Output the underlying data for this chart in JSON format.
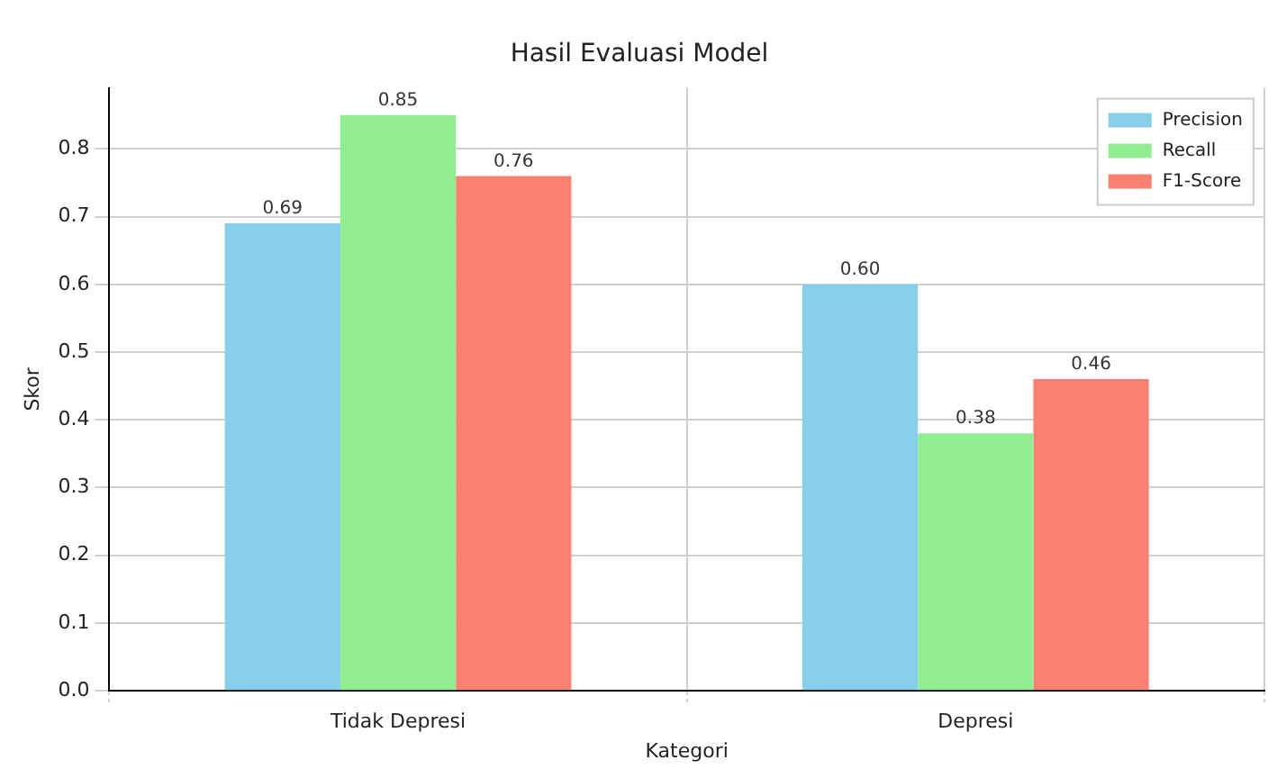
{
  "chart_data": {
    "type": "bar",
    "title": "Hasil Evaluasi Model",
    "xlabel": "Kategori",
    "ylabel": "Skor",
    "categories": [
      "Tidak Depresi",
      "Depresi"
    ],
    "series": [
      {
        "name": "Precision",
        "color": "#87ceeb",
        "values": [
          0.69,
          0.6
        ],
        "value_labels": [
          "0.69",
          "0.60"
        ]
      },
      {
        "name": "Recall",
        "color": "#90ee90",
        "values": [
          0.85,
          0.38
        ],
        "value_labels": [
          "0.85",
          "0.38"
        ]
      },
      {
        "name": "F1-Score",
        "color": "#fa8072",
        "values": [
          0.76,
          0.46
        ],
        "value_labels": [
          "0.76",
          "0.46"
        ]
      }
    ],
    "ylim": [
      0,
      0.89
    ],
    "yticks": [
      {
        "value": 0,
        "label": "0.0"
      },
      0.1,
      0.2,
      0.3,
      0.4,
      0.5,
      0.6,
      0.7,
      0.8
    ],
    "grid": true,
    "legend": "top right"
  }
}
